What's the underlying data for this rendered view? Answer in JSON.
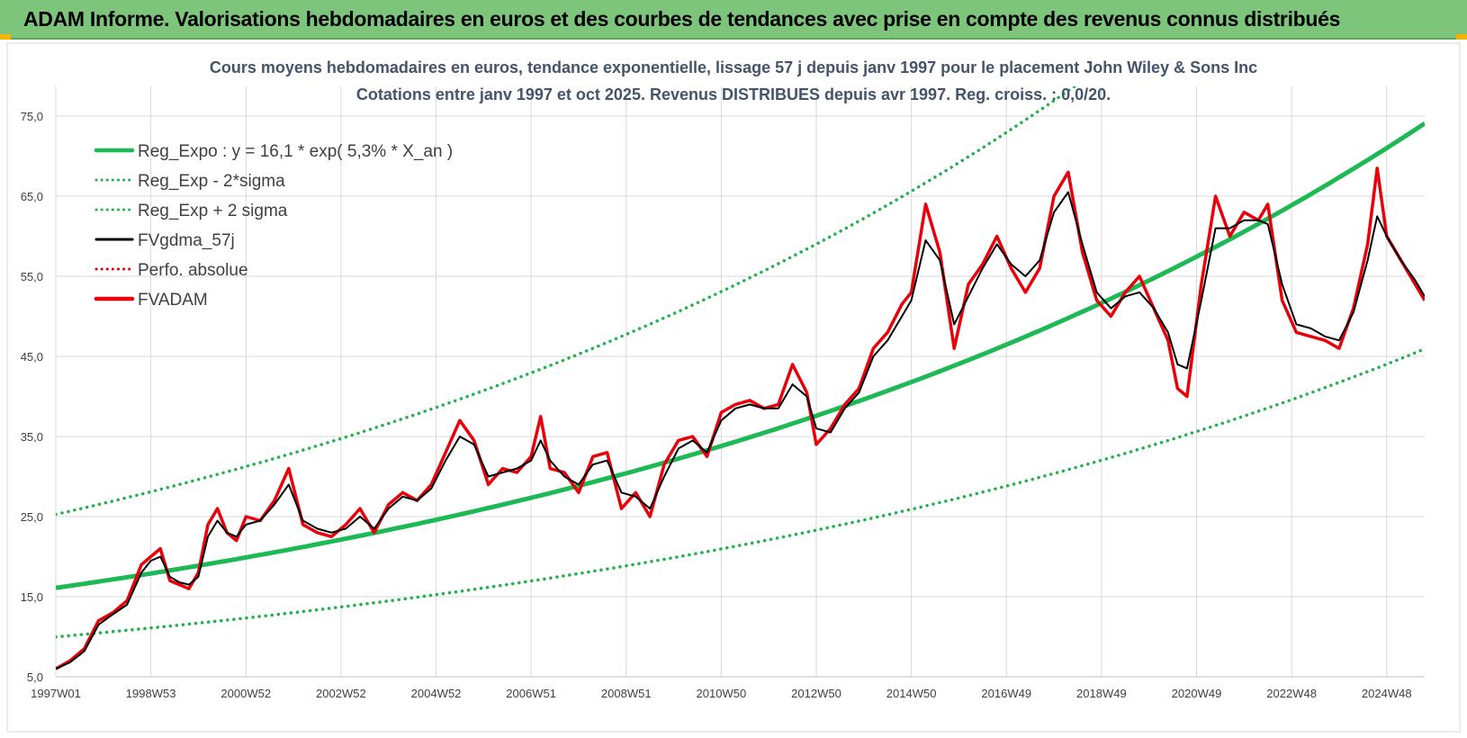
{
  "banner": {
    "title": "ADAM Informe. Valorisations hebdomadaires en euros et des courbes de tendances avec prise en compte des revenus connus distribués"
  },
  "colors": {
    "banner_bg": "#7cc57a",
    "reg_expo": "#1db954",
    "sigma": "#22b14c",
    "fvgdma": "#000000",
    "perfo": "#e00000",
    "fvadam": "#e8000b",
    "grid": "#d9d9d9",
    "title_text": "#44546a"
  },
  "chart_data": {
    "type": "line",
    "title": "Cours moyens hebdomadaires en euros, tendance exponentielle, lissage 57 j depuis janv 1997 pour le placement John Wiley & Sons Inc",
    "subtitle": "Cotations entre janv 1997 et oct 2025. Revenus DISTRIBUES depuis avr 1997. Reg. croiss. : 0,0/20.",
    "xlabel": "",
    "ylabel": "",
    "x_range": [
      1997.0,
      2025.8
    ],
    "ylim": [
      5,
      80
    ],
    "y_ticks": [
      5,
      15,
      25,
      35,
      45,
      55,
      65,
      75
    ],
    "y_tick_labels": [
      "5,0",
      "15,0",
      "25,0",
      "35,0",
      "45,0",
      "55,0",
      "65,0",
      "75,0"
    ],
    "x_tick_labels": [
      "1997W01",
      "1998W53",
      "2000W52",
      "2002W52",
      "2004W52",
      "2006W51",
      "2008W51",
      "2010W50",
      "2012W50",
      "2014W50",
      "2016W49",
      "2018W49",
      "2020W49",
      "2022W48",
      "2024W48"
    ],
    "x_tick_years": [
      1997.0,
      1999.0,
      2001.0,
      2003.0,
      2005.0,
      2007.0,
      2009.0,
      2011.0,
      2013.0,
      2015.0,
      2017.0,
      2019.0,
      2021.0,
      2023.0,
      2025.0
    ],
    "grid": "vertical and horizontal",
    "legend_position": "top-left",
    "legend": [
      {
        "label": "Reg_Expo : y = 16,1 * exp( 5,3% *  X_an )",
        "style": "solid-thick",
        "color": "#1db954"
      },
      {
        "label": "Reg_Exp - 2*sigma",
        "style": "dotted",
        "color": "#22b14c"
      },
      {
        "label": "Reg_Exp + 2 sigma",
        "style": "dotted",
        "color": "#22b14c"
      },
      {
        "label": "FVgdma_57j",
        "style": "solid",
        "color": "#000000"
      },
      {
        "label": "Perfo. absolue",
        "style": "dotted",
        "color": "#e00000"
      },
      {
        "label": "FVADAM",
        "style": "solid-thick",
        "color": "#e8000b"
      }
    ],
    "regression": {
      "a": 16.1,
      "rate": 0.053,
      "lower_factor": 0.62,
      "upper_factor": 1.57
    },
    "series": [
      {
        "name": "FVADAM",
        "x": [
          1997.0,
          1997.3,
          1997.6,
          1997.9,
          1998.2,
          1998.5,
          1998.8,
          1999.0,
          1999.2,
          1999.4,
          1999.6,
          1999.8,
          2000.0,
          2000.2,
          2000.4,
          2000.6,
          2000.8,
          2001.0,
          2001.3,
          2001.6,
          2001.9,
          2002.2,
          2002.5,
          2002.8,
          2003.1,
          2003.4,
          2003.7,
          2004.0,
          2004.3,
          2004.6,
          2004.9,
          2005.2,
          2005.5,
          2005.8,
          2006.1,
          2006.4,
          2006.7,
          2007.0,
          2007.2,
          2007.4,
          2007.7,
          2008.0,
          2008.3,
          2008.6,
          2008.9,
          2009.2,
          2009.5,
          2009.8,
          2010.1,
          2010.4,
          2010.7,
          2011.0,
          2011.3,
          2011.6,
          2011.9,
          2012.2,
          2012.5,
          2012.8,
          2013.0,
          2013.3,
          2013.6,
          2013.9,
          2014.2,
          2014.5,
          2014.8,
          2015.0,
          2015.3,
          2015.6,
          2015.9,
          2016.2,
          2016.5,
          2016.8,
          2017.1,
          2017.4,
          2017.7,
          2018.0,
          2018.3,
          2018.6,
          2018.9,
          2019.2,
          2019.5,
          2019.8,
          2020.1,
          2020.4,
          2020.6,
          2020.8,
          2021.1,
          2021.4,
          2021.7,
          2022.0,
          2022.3,
          2022.5,
          2022.8,
          2023.1,
          2023.4,
          2023.7,
          2024.0,
          2024.3,
          2024.6,
          2024.8,
          2025.0,
          2025.3,
          2025.6,
          2025.8
        ],
        "y": [
          6.0,
          7.0,
          8.5,
          12.0,
          13.0,
          14.5,
          19.0,
          20.0,
          21.0,
          17.0,
          16.5,
          16.0,
          18.0,
          24.0,
          26.0,
          23.0,
          22.0,
          25.0,
          24.5,
          27.0,
          31.0,
          24.0,
          23.0,
          22.5,
          24.0,
          26.0,
          23.0,
          26.5,
          28.0,
          27.0,
          29.0,
          33.0,
          37.0,
          34.5,
          29.0,
          31.0,
          30.5,
          32.5,
          37.5,
          31.0,
          30.5,
          28.0,
          32.5,
          33.0,
          26.0,
          28.0,
          25.0,
          31.5,
          34.5,
          35.0,
          32.5,
          38.0,
          39.0,
          39.5,
          38.5,
          39.0,
          44.0,
          40.5,
          34.0,
          36.0,
          39.0,
          41.0,
          46.0,
          48.0,
          51.5,
          53.0,
          64.0,
          58.0,
          46.0,
          54.0,
          56.5,
          60.0,
          56.0,
          53.0,
          56.0,
          65.0,
          68.0,
          58.0,
          52.0,
          50.0,
          53.0,
          55.0,
          51.0,
          47.0,
          41.0,
          40.0,
          54.0,
          65.0,
          60.0,
          63.0,
          62.0,
          64.0,
          52.0,
          48.0,
          47.5,
          47.0,
          46.0,
          51.0,
          59.0,
          68.5,
          60.0,
          57.0,
          54.0,
          52.0
        ]
      },
      {
        "name": "FVgdma_57j",
        "x": [
          1997.0,
          1997.3,
          1997.6,
          1997.9,
          1998.2,
          1998.5,
          1998.8,
          1999.0,
          1999.2,
          1999.4,
          1999.6,
          1999.8,
          2000.0,
          2000.2,
          2000.4,
          2000.6,
          2000.8,
          2001.0,
          2001.3,
          2001.6,
          2001.9,
          2002.2,
          2002.5,
          2002.8,
          2003.1,
          2003.4,
          2003.7,
          2004.0,
          2004.3,
          2004.6,
          2004.9,
          2005.2,
          2005.5,
          2005.8,
          2006.1,
          2006.4,
          2006.7,
          2007.0,
          2007.2,
          2007.4,
          2007.7,
          2008.0,
          2008.3,
          2008.6,
          2008.9,
          2009.2,
          2009.5,
          2009.8,
          2010.1,
          2010.4,
          2010.7,
          2011.0,
          2011.3,
          2011.6,
          2011.9,
          2012.2,
          2012.5,
          2012.8,
          2013.0,
          2013.3,
          2013.6,
          2013.9,
          2014.2,
          2014.5,
          2014.8,
          2015.0,
          2015.3,
          2015.6,
          2015.9,
          2016.2,
          2016.5,
          2016.8,
          2017.1,
          2017.4,
          2017.7,
          2018.0,
          2018.3,
          2018.6,
          2018.9,
          2019.2,
          2019.5,
          2019.8,
          2020.1,
          2020.4,
          2020.6,
          2020.8,
          2021.1,
          2021.4,
          2021.7,
          2022.0,
          2022.3,
          2022.5,
          2022.8,
          2023.1,
          2023.4,
          2023.7,
          2024.0,
          2024.3,
          2024.6,
          2024.8,
          2025.0,
          2025.3,
          2025.6,
          2025.8
        ],
        "y": [
          6.0,
          6.8,
          8.2,
          11.5,
          12.8,
          14.0,
          18.0,
          19.5,
          20.0,
          17.5,
          16.8,
          16.5,
          17.5,
          22.5,
          24.5,
          23.0,
          22.5,
          24.0,
          24.5,
          26.5,
          29.0,
          24.5,
          23.5,
          23.0,
          23.5,
          25.0,
          23.5,
          26.0,
          27.5,
          27.0,
          28.5,
          32.0,
          35.0,
          34.0,
          30.0,
          30.5,
          31.0,
          32.0,
          34.5,
          32.0,
          30.0,
          29.0,
          31.5,
          32.0,
          28.0,
          27.5,
          26.0,
          30.0,
          33.5,
          34.5,
          33.0,
          37.0,
          38.5,
          39.0,
          38.5,
          38.5,
          41.5,
          40.0,
          36.0,
          35.5,
          38.5,
          40.5,
          45.0,
          47.0,
          50.0,
          52.0,
          59.5,
          57.0,
          49.0,
          52.5,
          56.0,
          59.0,
          56.5,
          55.0,
          57.0,
          63.0,
          65.5,
          59.0,
          53.0,
          51.0,
          52.5,
          53.0,
          51.0,
          48.0,
          44.0,
          43.5,
          52.0,
          61.0,
          61.0,
          62.0,
          62.0,
          61.5,
          54.0,
          49.0,
          48.5,
          47.5,
          47.0,
          50.5,
          57.0,
          62.5,
          60.0,
          57.0,
          54.5,
          52.5
        ]
      }
    ]
  }
}
